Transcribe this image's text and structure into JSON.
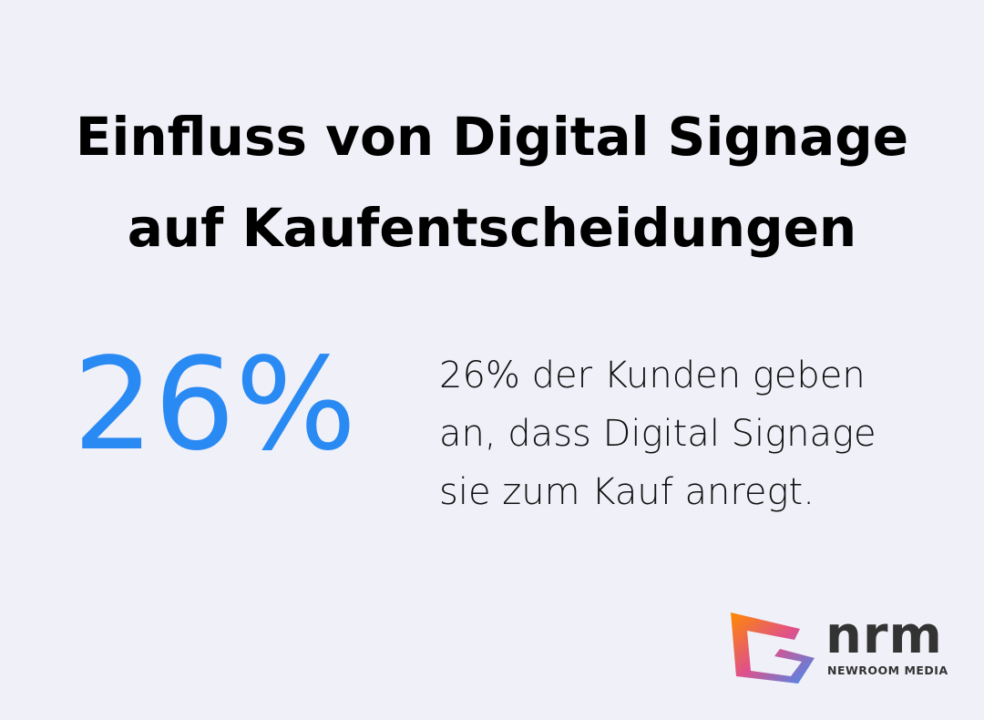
{
  "title": "Einfluss von Digital Signage auf Kaufentscheidungen",
  "stat": "26%",
  "description": "26% der Kunden geben an, dass Digital Signage sie zum Kauf anregt.",
  "logo": {
    "name": "nrm",
    "subtitle": "NEWROOM MEDIA"
  }
}
